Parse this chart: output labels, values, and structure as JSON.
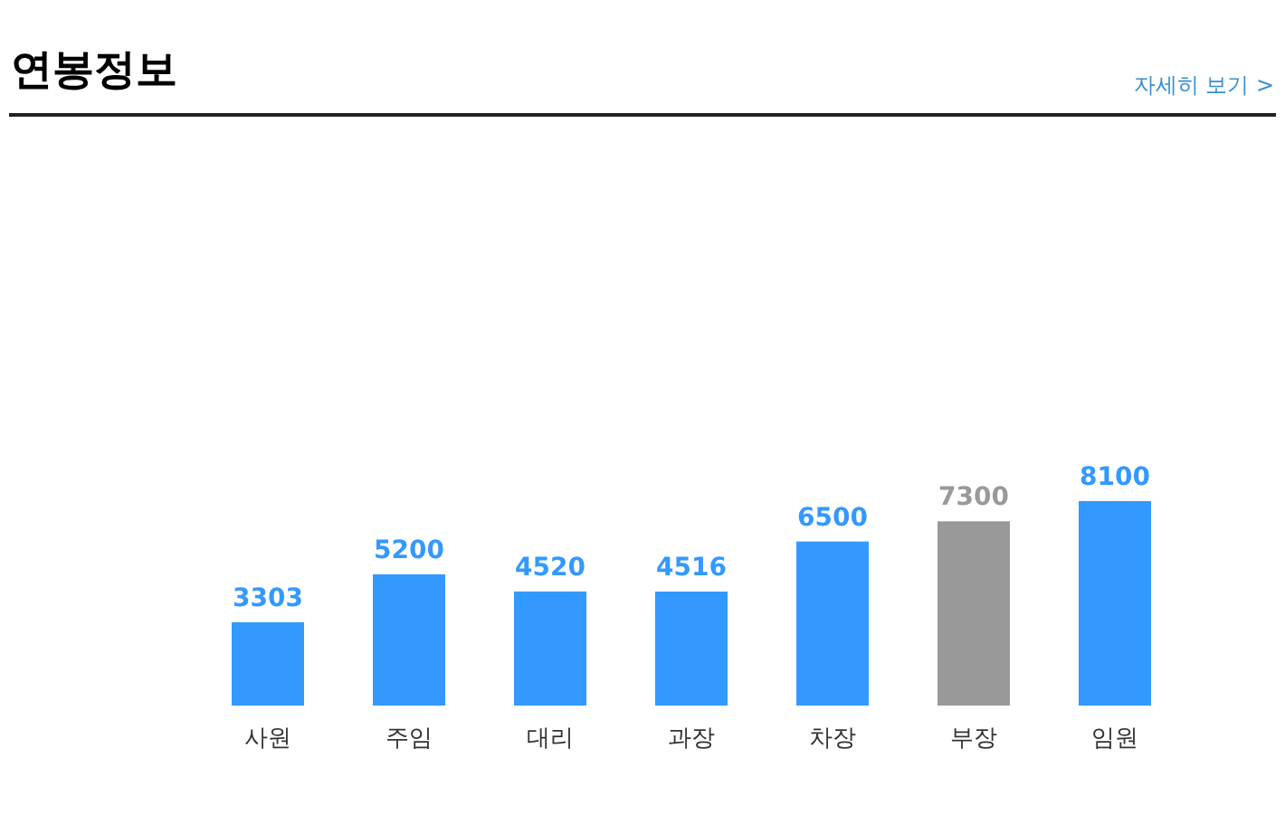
{
  "chart_data": {
    "type": "bar",
    "title": "연봉정보",
    "annotations": [
      "자세히 보기 >"
    ],
    "categories": [
      "사원",
      "주임",
      "대리",
      "과장",
      "차장",
      "부장",
      "임원"
    ],
    "values": [
      3303,
      5200,
      4520,
      4516,
      6500,
      7300,
      8100
    ],
    "colors": [
      "#3399ff",
      "#3399ff",
      "#3399ff",
      "#3399ff",
      "#3399ff",
      "#999999",
      "#3399ff"
    ],
    "data_labels": true
  }
}
